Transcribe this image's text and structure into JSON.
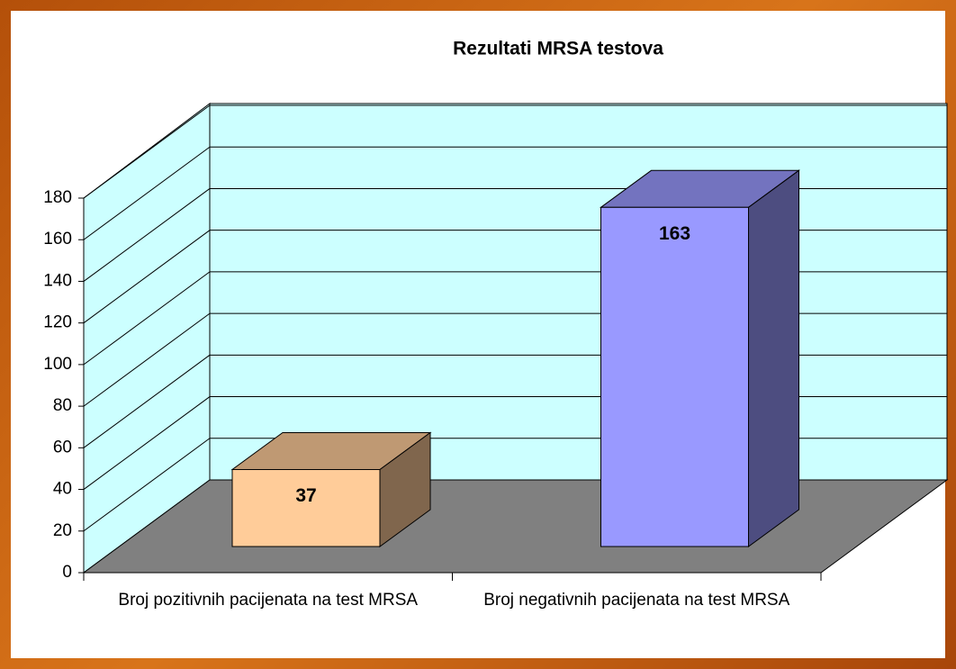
{
  "chart_data": {
    "type": "bar3d",
    "title": "Rezultati MRSA testova",
    "categories": [
      "Broj pozitivnih pacijenata na test MRSA",
      "Broj negativnih pacijenata na test MRSA"
    ],
    "values": [
      37,
      163
    ],
    "colors": [
      "#ffcc99",
      "#9999ff"
    ],
    "ylim": [
      0,
      180
    ],
    "yticks": [
      0,
      20,
      40,
      60,
      80,
      100,
      120,
      140,
      160,
      180
    ],
    "grid": true
  }
}
